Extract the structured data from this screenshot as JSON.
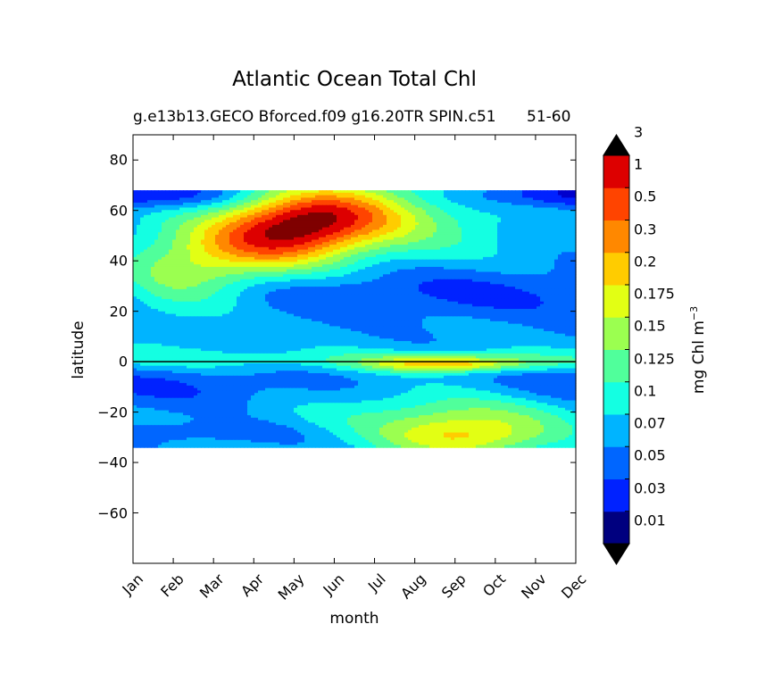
{
  "chart_data": {
    "type": "heatmap",
    "title": "Atlantic Ocean Total Chl",
    "subtitle_left": "g.e13b13.GECO Bforced.f09 g16.20TR SPIN.c51",
    "subtitle_right": "51-60",
    "xlabel": "month",
    "ylabel": "latitude",
    "colorbar_label_main": "mg Chl m",
    "colorbar_label_exp": "−3",
    "x_categories": [
      "Jan",
      "Feb",
      "Mar",
      "Apr",
      "May",
      "Jun",
      "Jul",
      "Aug",
      "Sep",
      "Oct",
      "Nov",
      "Dec"
    ],
    "y_ticks": [
      80,
      60,
      40,
      20,
      0,
      -20,
      -40,
      -60
    ],
    "y_tick_labels": [
      "80",
      "60",
      "40",
      "20",
      "0",
      "−20",
      "−40",
      "−60"
    ],
    "ylim": [
      -80,
      90
    ],
    "data_lat_range": [
      -34,
      68
    ],
    "levels": [
      "0.01",
      "0.03",
      "0.05",
      "0.07",
      "0.1",
      "0.125",
      "0.15",
      "0.175",
      "0.2",
      "0.3",
      "0.5",
      "1",
      "3"
    ],
    "colors": [
      "#00007f",
      "#0000cd",
      "#0022ff",
      "#0066ff",
      "#00b4ff",
      "#14ffe2",
      "#50ff9b",
      "#9bff50",
      "#e2ff14",
      "#ffcc00",
      "#ff8800",
      "#ff4400",
      "#dd0000",
      "#7f0000"
    ],
    "grid": false,
    "colorbar_position": "right"
  }
}
